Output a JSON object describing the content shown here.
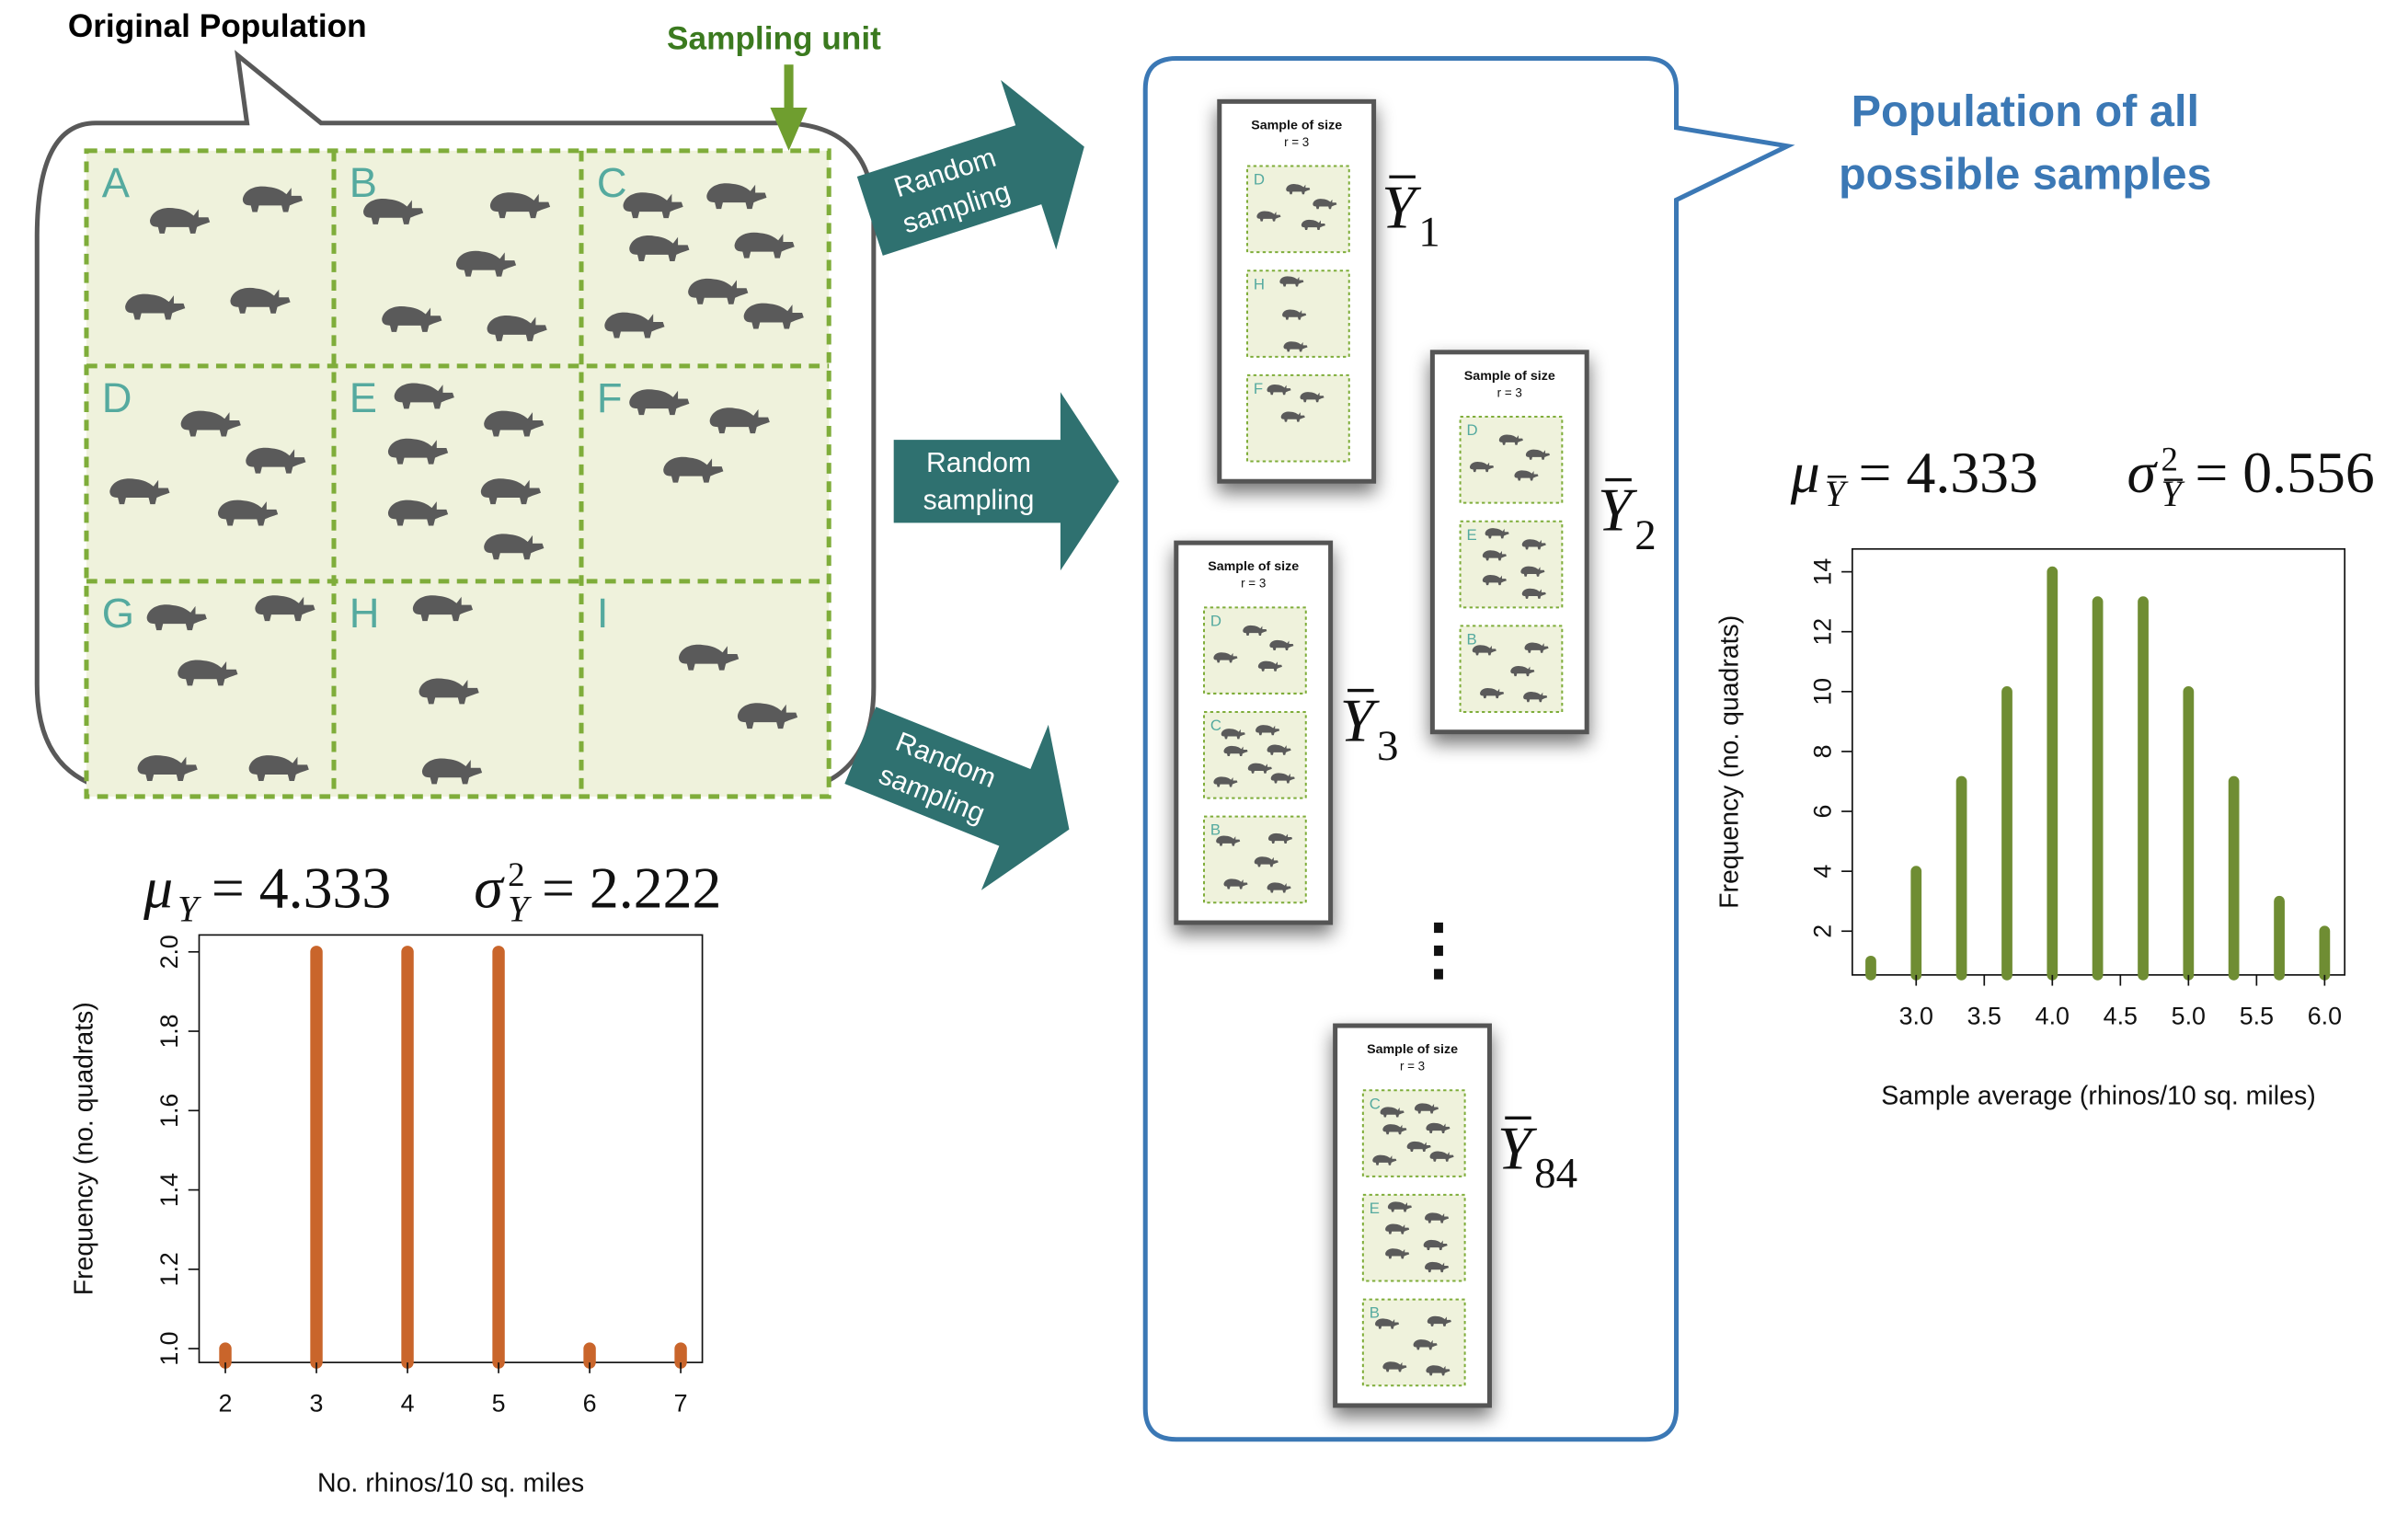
{
  "labels": {
    "original_population": "Original Population",
    "sampling_unit": "Sampling unit",
    "population_samples_line1": "Population of all",
    "population_samples_line2": "possible samples",
    "arrow_line1": "Random",
    "arrow_line2": "sampling",
    "card_title": "Sample of size",
    "card_sub": "r = 3",
    "ellipsis": "⋮"
  },
  "colors": {
    "teal_arrow": "#2f7170",
    "quadrat_fill": "#eff2dc",
    "quadrat_border": "#7fad3a",
    "rhino": "#5a5a5a",
    "letters": "#55aa9f",
    "sampling_unit_green": "#3b7a1f",
    "blue_bubble": "#3b78b5",
    "orange_bars": "#c9652b",
    "green_bars": "#6f8d33"
  },
  "quadrats": [
    {
      "letter": "A",
      "count": 4
    },
    {
      "letter": "B",
      "count": 5
    },
    {
      "letter": "C",
      "count": 7
    },
    {
      "letter": "D",
      "count": 4
    },
    {
      "letter": "E",
      "count": 6
    },
    {
      "letter": "F",
      "count": 3
    },
    {
      "letter": "G",
      "count": 5
    },
    {
      "letter": "H",
      "count": 3
    },
    {
      "letter": "I",
      "count": 2
    }
  ],
  "samples": [
    {
      "letters": [
        "D",
        "H",
        "F"
      ],
      "ybar": "Y",
      "sub": "1"
    },
    {
      "letters": [
        "D",
        "E",
        "B"
      ],
      "ybar": "Y",
      "sub": "2"
    },
    {
      "letters": [
        "D",
        "C",
        "B"
      ],
      "ybar": "Y",
      "sub": "3"
    },
    {
      "letters": [
        "C",
        "E",
        "B"
      ],
      "ybar": "Y",
      "sub": "84"
    }
  ],
  "chart_data": [
    {
      "type": "bar",
      "title": "",
      "xlabel": "No. rhinos/10 sq. miles",
      "ylabel": "Frequency (no. quadrats)",
      "x": [
        2,
        3,
        4,
        5,
        6,
        7
      ],
      "values": [
        1,
        2,
        2,
        2,
        1,
        1
      ],
      "xticks": [
        "2",
        "3",
        "4",
        "5",
        "6",
        "7"
      ],
      "yticks": [
        "1.0",
        "1.2",
        "1.4",
        "1.6",
        "1.8",
        "2.0"
      ],
      "ylim": [
        1.0,
        2.0
      ],
      "xlim": [
        2,
        7
      ],
      "grid": false,
      "formula": {
        "mu_sym": "μ",
        "mu_sub": "Y",
        "mu_val": "= 4.333",
        "var_sym": "σ",
        "var_sup": "2",
        "var_sub": "Y",
        "var_val": "= 2.222"
      }
    },
    {
      "type": "bar",
      "title": "",
      "xlabel": "Sample average (rhinos/10 sq. miles)",
      "ylabel": "Frequency (no. quadrats)",
      "x": [
        2.667,
        3.0,
        3.333,
        3.667,
        4.0,
        4.333,
        4.667,
        5.0,
        5.333,
        5.667,
        6.0
      ],
      "values": [
        1,
        4,
        7,
        10,
        14,
        13,
        13,
        10,
        7,
        3,
        2
      ],
      "xticks": [
        "3.0",
        "3.5",
        "4.0",
        "4.5",
        "5.0",
        "5.5",
        "6.0"
      ],
      "yticks": [
        "2",
        "4",
        "6",
        "8",
        "10",
        "12",
        "14"
      ],
      "ylim": [
        1,
        14.3
      ],
      "xlim": [
        2.667,
        6.0
      ],
      "grid": false,
      "formula": {
        "mu_sym": "μ",
        "mu_sub": "Y",
        "mu_val": "= 4.333",
        "var_sym": "σ",
        "var_sup": "2",
        "var_sub": "Y",
        "var_val": "= 0.556"
      }
    }
  ]
}
